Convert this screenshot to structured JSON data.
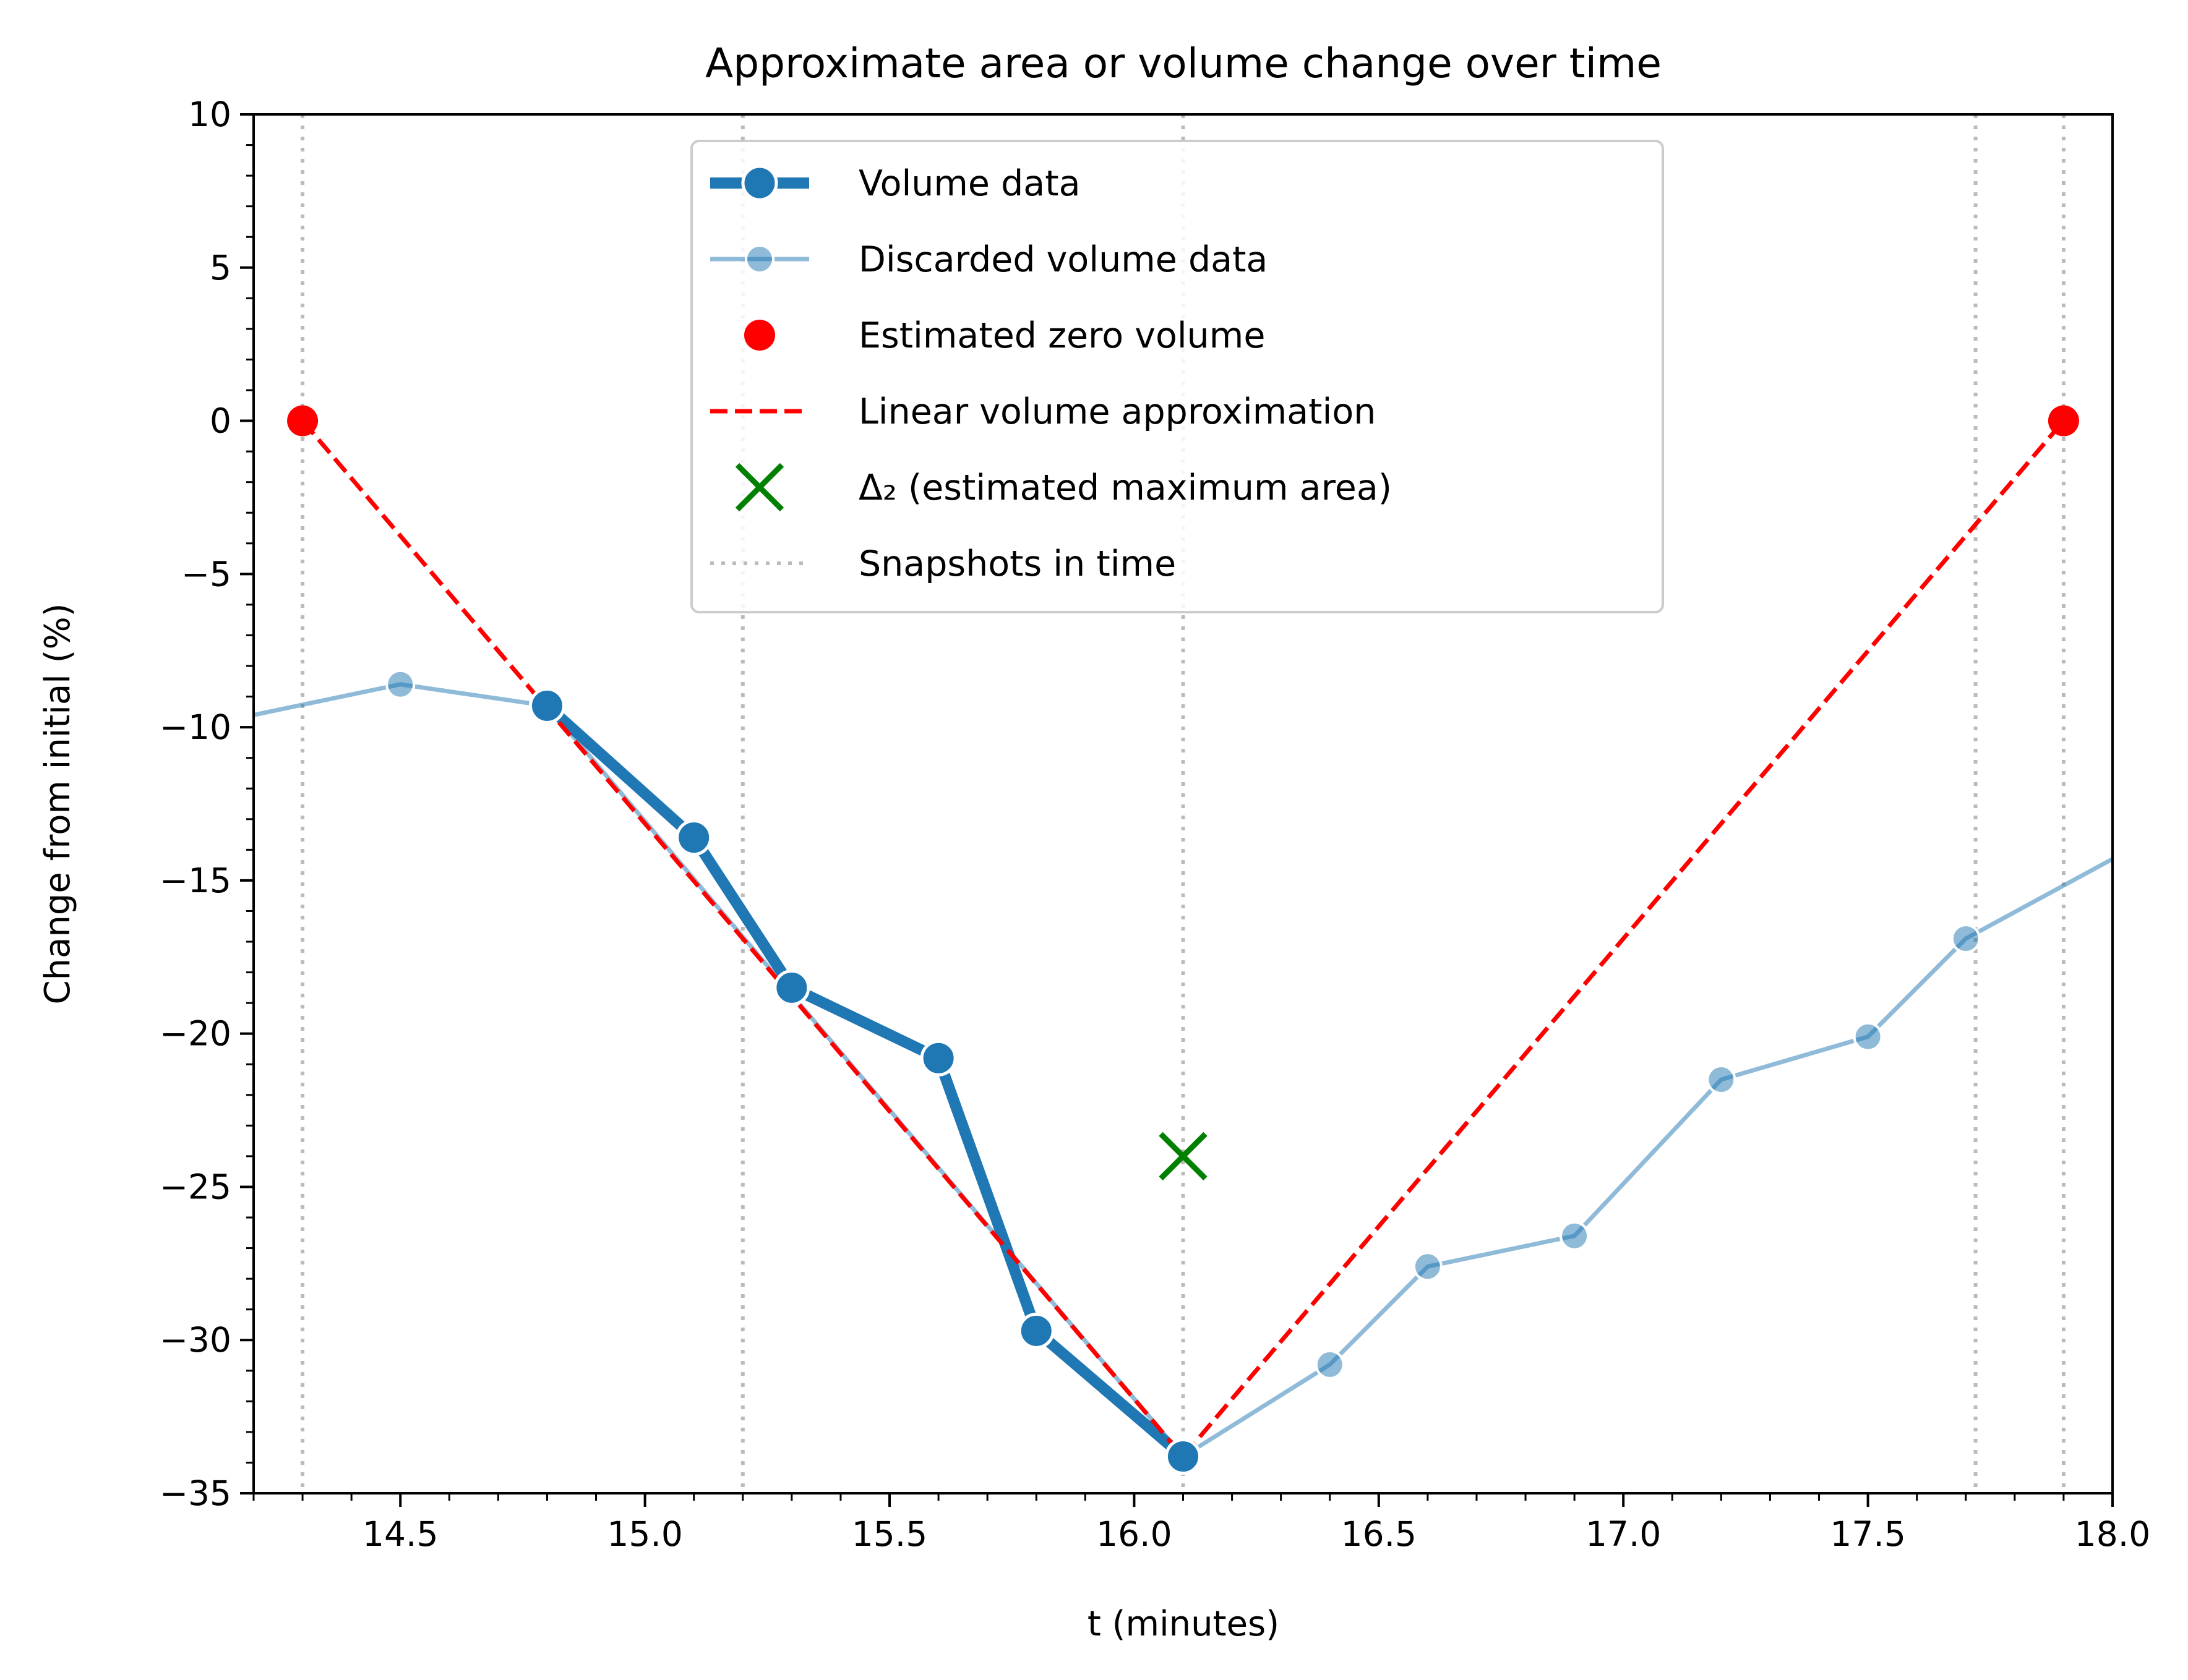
{
  "chart_data": {
    "type": "line",
    "title": "Approximate area or volume change over time",
    "xlabel": "t (minutes)",
    "ylabel": "Change from initial (%)",
    "xlim": [
      14.2,
      18.0
    ],
    "ylim": [
      -35,
      10
    ],
    "xticks": [
      14.5,
      15.0,
      15.5,
      16.0,
      16.5,
      17.0,
      17.5,
      18.0
    ],
    "xtick_labels": [
      "14.5",
      "15.0",
      "15.5",
      "16.0",
      "16.5",
      "17.0",
      "17.5",
      "18.0"
    ],
    "yticks": [
      10,
      5,
      0,
      -5,
      -10,
      -15,
      -20,
      -25,
      -30,
      -35
    ],
    "ytick_labels": [
      "10",
      "5",
      "0",
      "−5",
      "−10",
      "−15",
      "−20",
      "−25",
      "−30",
      "−35"
    ],
    "grid": false,
    "legend_position": "top-center",
    "series": [
      {
        "name": "Volume data",
        "color": "#1f77b4",
        "style": "thick-solid-markers",
        "x": [
          14.8,
          15.1,
          15.3,
          15.6,
          15.8,
          16.1
        ],
        "y": [
          -9.3,
          -13.6,
          -18.5,
          -20.8,
          -29.7,
          -33.8
        ]
      },
      {
        "name": "Discarded volume data",
        "color": "#1f77b4",
        "style": "thin-solid-markers-faded",
        "x": [
          14.2,
          14.5,
          14.8,
          16.1,
          16.4,
          16.6,
          16.9,
          17.2,
          17.5,
          17.7,
          18.0
        ],
        "y": [
          -9.6,
          -8.6,
          -9.3,
          -33.8,
          -30.8,
          -27.6,
          -26.6,
          -21.5,
          -20.1,
          -16.9,
          -14.3
        ],
        "markers": [
          false,
          true,
          false,
          false,
          true,
          true,
          true,
          true,
          true,
          true,
          false
        ]
      },
      {
        "name": "Estimated zero volume",
        "color": "#ff0000",
        "style": "markers-only",
        "x": [
          14.3,
          17.9
        ],
        "y": [
          0,
          0
        ]
      },
      {
        "name": "Linear volume approximation",
        "color": "#ff0000",
        "style": "dashed",
        "x": [
          14.3,
          16.1,
          17.9
        ],
        "y": [
          0,
          -33.8,
          0
        ]
      },
      {
        "name": "Δ₂ (estimated maximum area)",
        "color": "#008000",
        "style": "x-marker",
        "x": [
          16.1
        ],
        "y": [
          -24.0
        ]
      },
      {
        "name": "Snapshots in time",
        "color": "#bbbbbb",
        "style": "dotted-vertical",
        "x": [
          14.3,
          15.2,
          16.1,
          17.72,
          17.9
        ]
      }
    ]
  }
}
